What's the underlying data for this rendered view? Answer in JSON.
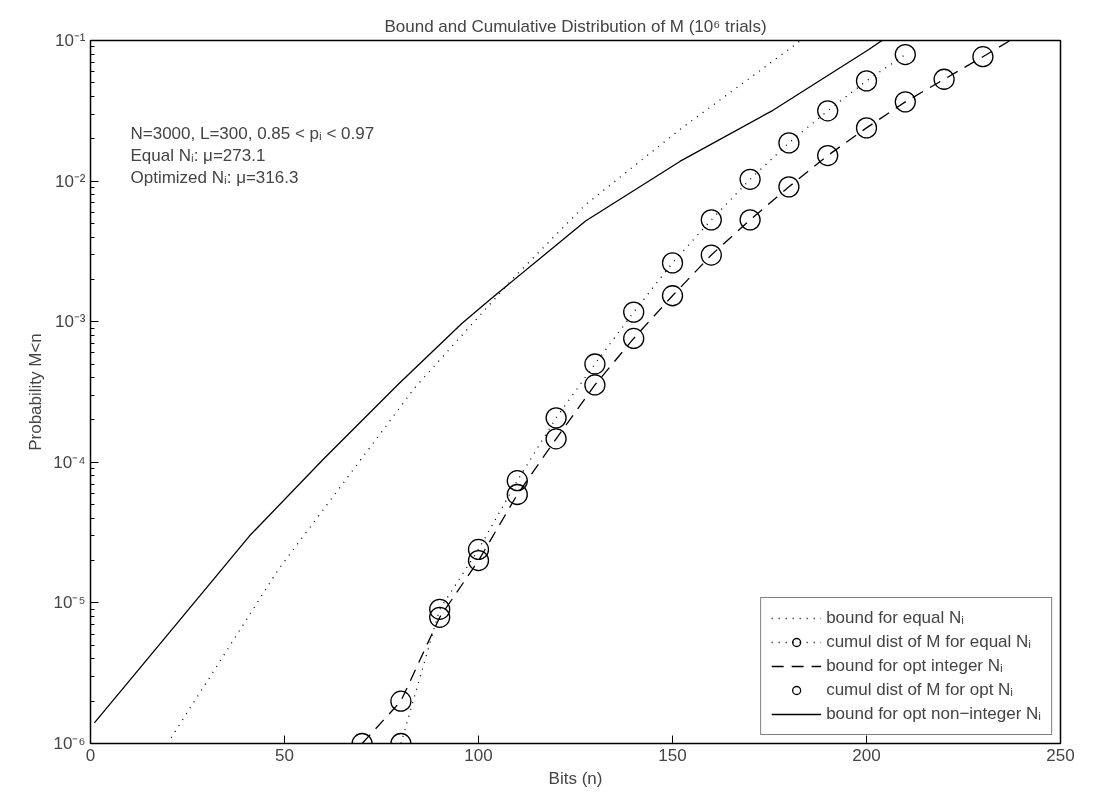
{
  "chart_data": {
    "type": "line",
    "title": "Bound and Cumulative Distribution of M (10⁶ trials)",
    "xlabel": "Bits (n)",
    "ylabel": "Probability M<n",
    "log": "y",
    "grid": false,
    "legend": "bottom right",
    "xlim": [
      0,
      250
    ],
    "xticks": [
      0,
      50,
      100,
      150,
      200,
      250
    ],
    "ylim": [
      1e-06,
      0.1
    ],
    "yticks": [
      {
        "value": 1e-06,
        "label": "10⁻⁶"
      },
      {
        "value": 1e-05,
        "label": "10⁻⁵"
      },
      {
        "value": 0.0001,
        "label": "10⁻⁴"
      },
      {
        "value": 0.001,
        "label": "10⁻³"
      },
      {
        "value": 0.01,
        "label": "10⁻²"
      },
      {
        "value": 0.1,
        "label": "10⁻¹"
      }
    ],
    "annotations": [
      "N=3000, L=300, 0.85 < pᵢ < 0.97",
      "Equal Nᵢ: μ=273.1",
      "Optimized Nᵢ: μ=316.3"
    ],
    "series": [
      {
        "name": "bound for equal Nᵢ",
        "color": "#000000",
        "line_style": "dotted",
        "marker": "none",
        "x": [
          20.8,
          48.5,
          83.6,
          109.4,
          127.6,
          152,
          182,
          183
        ],
        "values": [
          1.1e-06,
          1.74e-05,
          0.00034,
          0.0021,
          0.0068,
          0.0234,
          0.095,
          0.1
        ]
      },
      {
        "name": "cumul dist of M for equal Nᵢ",
        "color": "#000000",
        "line_style": "dotted",
        "marker": "circle",
        "x": [
          80,
          90,
          100,
          110,
          120,
          130,
          140,
          150,
          160,
          170,
          180,
          190,
          200,
          210
        ],
        "values": [
          1e-06,
          9e-06,
          2.4e-05,
          7.4e-05,
          0.000207,
          0.0005,
          0.00117,
          0.00262,
          0.0053,
          0.0103,
          0.0187,
          0.0316,
          0.0516,
          0.0794
        ]
      },
      {
        "name": "bound for opt integer Nᵢ",
        "color": "#000000",
        "line_style": "dashed",
        "marker": "none",
        "x": [
          70,
          80,
          90,
          100,
          110,
          120,
          130,
          140,
          150,
          160,
          170,
          180,
          190,
          200,
          210,
          220,
          230,
          237
        ],
        "values": [
          1e-06,
          2e-06,
          7.9e-06,
          2e-05,
          5.9e-05,
          0.000147,
          0.000355,
          0.00076,
          0.00153,
          0.00298,
          0.0053,
          0.0091,
          0.0152,
          0.0239,
          0.0366,
          0.053,
          0.0767,
          0.1
        ]
      },
      {
        "name": "cumul dist of M for opt Nᵢ",
        "type": "scatter",
        "color": "#000000",
        "marker": "circle",
        "x": [
          70,
          80,
          90,
          100,
          110,
          120,
          130,
          140,
          150,
          160,
          170,
          180,
          190,
          200,
          210,
          220,
          230
        ],
        "values": [
          1e-06,
          2e-06,
          7.9e-06,
          2e-05,
          5.9e-05,
          0.000147,
          0.000355,
          0.00076,
          0.00153,
          0.00298,
          0.0053,
          0.0091,
          0.0152,
          0.0239,
          0.0366,
          0.053,
          0.0767
        ]
      },
      {
        "name": "bound for opt non−integer Nᵢ",
        "color": "#000000",
        "line_style": "solid",
        "marker": "none",
        "x": [
          1,
          20,
          41,
          60,
          79.4,
          95.7,
          103,
          127.6,
          151.9,
          176,
          200.5,
          204
        ],
        "values": [
          1.4e-06,
          6e-06,
          3e-05,
          0.000105,
          0.00036,
          0.00097,
          0.00144,
          0.0052,
          0.0138,
          0.032,
          0.086,
          0.1
        ]
      }
    ]
  }
}
